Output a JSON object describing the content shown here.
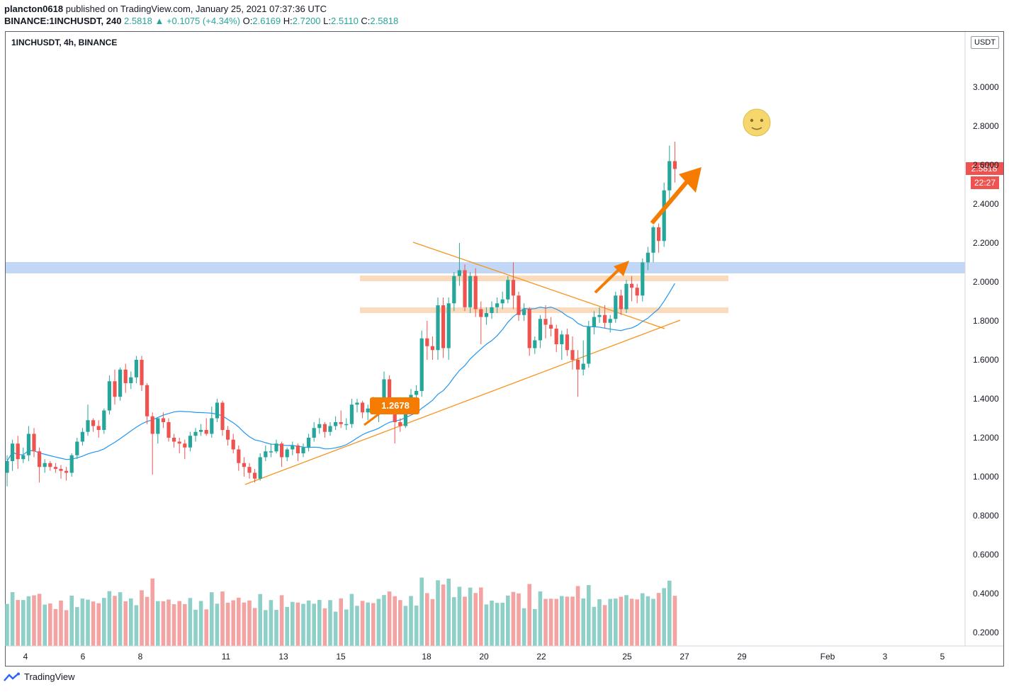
{
  "header": {
    "author": "plancton0618",
    "published_text": "published on TradingView.com, January 25, 2021 07:37:36 UTC",
    "symbol_line": "BINANCE:1INCHUSDT, 240",
    "last": "2.5818",
    "change": "+0.1075 (+4.34%)",
    "o_label": "O:",
    "o_value": "2.6169",
    "h_label": "H:",
    "h_value": "2.7200",
    "l_label": "L:",
    "l_value": "2.5110",
    "c_label": "C:",
    "c_value": "2.5818"
  },
  "pane": {
    "title": "1INCHUSDT, 4h, BINANCE",
    "currency": "USDT"
  },
  "badges": {
    "price": "2.5818",
    "countdown": "22:27",
    "annotation": "1.2678"
  },
  "footer": {
    "brand": "TradingView"
  },
  "colors": {
    "up": "#26a69a",
    "down": "#ef5350",
    "ma": "#2196f3",
    "trend": "#f7941d",
    "arrow": "#f57c00",
    "resistance_band": "#b3cdf2",
    "zone": "#f9c89a",
    "vol_up": "#8ed0c8",
    "vol_down": "#f4a3a3"
  },
  "chart_data": {
    "type": "candlestick",
    "title": "1INCHUSDT, 4h, BINANCE",
    "y_ticks": [
      "3.0000",
      "2.8000",
      "2.6000",
      "2.4000",
      "2.2000",
      "2.0000",
      "1.8000",
      "1.6000",
      "1.4000",
      "1.2000",
      "1.0000",
      "0.8000",
      "0.6000",
      "0.4000",
      "0.2000"
    ],
    "x_ticks": [
      "4",
      "6",
      "8",
      "11",
      "13",
      "15",
      "18",
      "20",
      "22",
      "25",
      "27",
      "29",
      "Feb",
      "3",
      "5"
    ],
    "ylim": [
      0.12,
      3.25
    ],
    "candles": [
      {
        "o": 1.02,
        "h": 1.11,
        "l": 0.95,
        "c": 1.08
      },
      {
        "o": 1.08,
        "h": 1.19,
        "l": 1.03,
        "c": 1.17
      },
      {
        "o": 1.17,
        "h": 1.21,
        "l": 1.04,
        "c": 1.09
      },
      {
        "o": 1.09,
        "h": 1.15,
        "l": 1.07,
        "c": 1.11
      },
      {
        "o": 1.11,
        "h": 1.26,
        "l": 1.08,
        "c": 1.22
      },
      {
        "o": 1.22,
        "h": 1.25,
        "l": 1.1,
        "c": 1.13
      },
      {
        "o": 1.13,
        "h": 1.15,
        "l": 0.97,
        "c": 1.05
      },
      {
        "o": 1.05,
        "h": 1.09,
        "l": 1.02,
        "c": 1.07
      },
      {
        "o": 1.07,
        "h": 1.08,
        "l": 1.03,
        "c": 1.05
      },
      {
        "o": 1.05,
        "h": 1.07,
        "l": 1.02,
        "c": 1.04
      },
      {
        "o": 1.04,
        "h": 1.06,
        "l": 0.99,
        "c": 1.03
      },
      {
        "o": 1.03,
        "h": 1.05,
        "l": 0.98,
        "c": 1.02
      },
      {
        "o": 1.02,
        "h": 1.12,
        "l": 1.0,
        "c": 1.11
      },
      {
        "o": 1.11,
        "h": 1.2,
        "l": 1.09,
        "c": 1.18
      },
      {
        "o": 1.18,
        "h": 1.25,
        "l": 1.16,
        "c": 1.23
      },
      {
        "o": 1.23,
        "h": 1.37,
        "l": 1.21,
        "c": 1.29
      },
      {
        "o": 1.29,
        "h": 1.3,
        "l": 1.23,
        "c": 1.26
      },
      {
        "o": 1.26,
        "h": 1.29,
        "l": 1.2,
        "c": 1.24
      },
      {
        "o": 1.24,
        "h": 1.35,
        "l": 1.22,
        "c": 1.34
      },
      {
        "o": 1.34,
        "h": 1.52,
        "l": 1.32,
        "c": 1.49
      },
      {
        "o": 1.49,
        "h": 1.55,
        "l": 1.37,
        "c": 1.41
      },
      {
        "o": 1.41,
        "h": 1.56,
        "l": 1.39,
        "c": 1.55
      },
      {
        "o": 1.55,
        "h": 1.58,
        "l": 1.43,
        "c": 1.48
      },
      {
        "o": 1.48,
        "h": 1.54,
        "l": 1.45,
        "c": 1.51
      },
      {
        "o": 1.51,
        "h": 1.62,
        "l": 1.48,
        "c": 1.6
      },
      {
        "o": 1.6,
        "h": 1.62,
        "l": 1.44,
        "c": 1.47
      },
      {
        "o": 1.47,
        "h": 1.48,
        "l": 1.27,
        "c": 1.31
      },
      {
        "o": 1.31,
        "h": 1.33,
        "l": 1.01,
        "c": 1.22
      },
      {
        "o": 1.22,
        "h": 1.3,
        "l": 1.17,
        "c": 1.3
      },
      {
        "o": 1.3,
        "h": 1.33,
        "l": 1.25,
        "c": 1.28
      },
      {
        "o": 1.28,
        "h": 1.3,
        "l": 1.18,
        "c": 1.2
      },
      {
        "o": 1.2,
        "h": 1.22,
        "l": 1.15,
        "c": 1.18
      },
      {
        "o": 1.18,
        "h": 1.2,
        "l": 1.12,
        "c": 1.17
      },
      {
        "o": 1.17,
        "h": 1.19,
        "l": 1.09,
        "c": 1.15
      },
      {
        "o": 1.15,
        "h": 1.23,
        "l": 1.13,
        "c": 1.21
      },
      {
        "o": 1.21,
        "h": 1.25,
        "l": 1.18,
        "c": 1.23
      },
      {
        "o": 1.23,
        "h": 1.27,
        "l": 1.21,
        "c": 1.24
      },
      {
        "o": 1.24,
        "h": 1.3,
        "l": 1.21,
        "c": 1.22
      },
      {
        "o": 1.22,
        "h": 1.36,
        "l": 1.2,
        "c": 1.3
      },
      {
        "o": 1.3,
        "h": 1.4,
        "l": 1.28,
        "c": 1.38
      },
      {
        "o": 1.38,
        "h": 1.39,
        "l": 1.21,
        "c": 1.24
      },
      {
        "o": 1.24,
        "h": 1.26,
        "l": 1.16,
        "c": 1.19
      },
      {
        "o": 1.19,
        "h": 1.22,
        "l": 1.12,
        "c": 1.14
      },
      {
        "o": 1.14,
        "h": 1.16,
        "l": 1.03,
        "c": 1.07
      },
      {
        "o": 1.07,
        "h": 1.1,
        "l": 1.0,
        "c": 1.05
      },
      {
        "o": 1.05,
        "h": 1.07,
        "l": 0.99,
        "c": 1.02
      },
      {
        "o": 1.02,
        "h": 1.04,
        "l": 0.97,
        "c": 0.99
      },
      {
        "o": 0.99,
        "h": 1.12,
        "l": 0.98,
        "c": 1.1
      },
      {
        "o": 1.1,
        "h": 1.16,
        "l": 1.08,
        "c": 1.13
      },
      {
        "o": 1.13,
        "h": 1.17,
        "l": 1.1,
        "c": 1.13
      },
      {
        "o": 1.13,
        "h": 1.19,
        "l": 1.12,
        "c": 1.17
      },
      {
        "o": 1.17,
        "h": 1.18,
        "l": 1.05,
        "c": 1.1
      },
      {
        "o": 1.1,
        "h": 1.15,
        "l": 1.08,
        "c": 1.14
      },
      {
        "o": 1.14,
        "h": 1.18,
        "l": 1.11,
        "c": 1.16
      },
      {
        "o": 1.16,
        "h": 1.17,
        "l": 1.08,
        "c": 1.12
      },
      {
        "o": 1.12,
        "h": 1.17,
        "l": 1.1,
        "c": 1.15
      },
      {
        "o": 1.15,
        "h": 1.22,
        "l": 1.13,
        "c": 1.2
      },
      {
        "o": 1.2,
        "h": 1.28,
        "l": 1.18,
        "c": 1.25
      },
      {
        "o": 1.25,
        "h": 1.3,
        "l": 1.22,
        "c": 1.27
      },
      {
        "o": 1.27,
        "h": 1.28,
        "l": 1.2,
        "c": 1.23
      },
      {
        "o": 1.23,
        "h": 1.28,
        "l": 1.21,
        "c": 1.26
      },
      {
        "o": 1.26,
        "h": 1.31,
        "l": 1.24,
        "c": 1.28
      },
      {
        "o": 1.28,
        "h": 1.34,
        "l": 1.25,
        "c": 1.27
      },
      {
        "o": 1.27,
        "h": 1.3,
        "l": 1.24,
        "c": 1.27
      },
      {
        "o": 1.27,
        "h": 1.4,
        "l": 1.25,
        "c": 1.37
      },
      {
        "o": 1.37,
        "h": 1.4,
        "l": 1.33,
        "c": 1.38
      },
      {
        "o": 1.38,
        "h": 1.39,
        "l": 1.3,
        "c": 1.33
      },
      {
        "o": 1.33,
        "h": 1.37,
        "l": 1.29,
        "c": 1.35
      },
      {
        "o": 1.35,
        "h": 1.41,
        "l": 1.32,
        "c": 1.32
      },
      {
        "o": 1.32,
        "h": 1.38,
        "l": 1.28,
        "c": 1.35
      },
      {
        "o": 1.35,
        "h": 1.54,
        "l": 1.33,
        "c": 1.5
      },
      {
        "o": 1.5,
        "h": 1.52,
        "l": 1.35,
        "c": 1.38
      },
      {
        "o": 1.38,
        "h": 1.4,
        "l": 1.17,
        "c": 1.28
      },
      {
        "o": 1.28,
        "h": 1.3,
        "l": 1.23,
        "c": 1.26
      },
      {
        "o": 1.26,
        "h": 1.37,
        "l": 1.25,
        "c": 1.35
      },
      {
        "o": 1.35,
        "h": 1.45,
        "l": 1.33,
        "c": 1.42
      },
      {
        "o": 1.42,
        "h": 1.47,
        "l": 1.38,
        "c": 1.44
      },
      {
        "o": 1.44,
        "h": 1.75,
        "l": 1.41,
        "c": 1.71
      },
      {
        "o": 1.71,
        "h": 1.8,
        "l": 1.6,
        "c": 1.67
      },
      {
        "o": 1.67,
        "h": 1.72,
        "l": 1.6,
        "c": 1.65
      },
      {
        "o": 1.65,
        "h": 1.92,
        "l": 1.6,
        "c": 1.88
      },
      {
        "o": 1.88,
        "h": 1.92,
        "l": 1.61,
        "c": 1.66
      },
      {
        "o": 1.66,
        "h": 1.92,
        "l": 1.6,
        "c": 1.89
      },
      {
        "o": 1.89,
        "h": 2.05,
        "l": 1.85,
        "c": 2.03
      },
      {
        "o": 2.03,
        "h": 2.2,
        "l": 1.98,
        "c": 2.06
      },
      {
        "o": 2.06,
        "h": 2.09,
        "l": 1.85,
        "c": 1.87
      },
      {
        "o": 1.87,
        "h": 2.05,
        "l": 1.84,
        "c": 2.03
      },
      {
        "o": 2.03,
        "h": 2.07,
        "l": 1.82,
        "c": 1.86
      },
      {
        "o": 1.86,
        "h": 1.9,
        "l": 1.68,
        "c": 1.82
      },
      {
        "o": 1.82,
        "h": 1.87,
        "l": 1.78,
        "c": 1.84
      },
      {
        "o": 1.84,
        "h": 1.9,
        "l": 1.81,
        "c": 1.87
      },
      {
        "o": 1.87,
        "h": 1.92,
        "l": 1.84,
        "c": 1.89
      },
      {
        "o": 1.89,
        "h": 1.95,
        "l": 1.86,
        "c": 1.91
      },
      {
        "o": 1.91,
        "h": 2.03,
        "l": 1.89,
        "c": 2.01
      },
      {
        "o": 2.01,
        "h": 2.1,
        "l": 1.86,
        "c": 1.93
      },
      {
        "o": 1.93,
        "h": 1.95,
        "l": 1.8,
        "c": 1.83
      },
      {
        "o": 1.83,
        "h": 1.89,
        "l": 1.8,
        "c": 1.86
      },
      {
        "o": 1.86,
        "h": 1.87,
        "l": 1.62,
        "c": 1.66
      },
      {
        "o": 1.66,
        "h": 1.72,
        "l": 1.63,
        "c": 1.7
      },
      {
        "o": 1.7,
        "h": 1.83,
        "l": 1.66,
        "c": 1.81
      },
      {
        "o": 1.81,
        "h": 1.88,
        "l": 1.71,
        "c": 1.78
      },
      {
        "o": 1.78,
        "h": 1.82,
        "l": 1.72,
        "c": 1.76
      },
      {
        "o": 1.76,
        "h": 1.78,
        "l": 1.64,
        "c": 1.68
      },
      {
        "o": 1.68,
        "h": 1.75,
        "l": 1.6,
        "c": 1.73
      },
      {
        "o": 1.73,
        "h": 1.76,
        "l": 1.62,
        "c": 1.65
      },
      {
        "o": 1.65,
        "h": 1.72,
        "l": 1.55,
        "c": 1.6
      },
      {
        "o": 1.6,
        "h": 1.65,
        "l": 1.41,
        "c": 1.55
      },
      {
        "o": 1.55,
        "h": 1.7,
        "l": 1.52,
        "c": 1.58
      },
      {
        "o": 1.58,
        "h": 1.8,
        "l": 1.56,
        "c": 1.77
      },
      {
        "o": 1.77,
        "h": 1.85,
        "l": 1.73,
        "c": 1.82
      },
      {
        "o": 1.82,
        "h": 1.87,
        "l": 1.79,
        "c": 1.83
      },
      {
        "o": 1.83,
        "h": 1.88,
        "l": 1.76,
        "c": 1.79
      },
      {
        "o": 1.79,
        "h": 1.83,
        "l": 1.74,
        "c": 1.81
      },
      {
        "o": 1.81,
        "h": 1.95,
        "l": 1.79,
        "c": 1.93
      },
      {
        "o": 1.93,
        "h": 1.96,
        "l": 1.83,
        "c": 1.86
      },
      {
        "o": 1.86,
        "h": 2.01,
        "l": 1.84,
        "c": 1.99
      },
      {
        "o": 1.99,
        "h": 2.03,
        "l": 1.9,
        "c": 1.97
      },
      {
        "o": 1.97,
        "h": 1.99,
        "l": 1.89,
        "c": 1.93
      },
      {
        "o": 1.93,
        "h": 2.12,
        "l": 1.9,
        "c": 2.1
      },
      {
        "o": 2.1,
        "h": 2.18,
        "l": 2.06,
        "c": 2.15
      },
      {
        "o": 2.15,
        "h": 2.29,
        "l": 2.1,
        "c": 2.28
      },
      {
        "o": 2.28,
        "h": 2.3,
        "l": 2.15,
        "c": 2.21
      },
      {
        "o": 2.21,
        "h": 2.51,
        "l": 2.18,
        "c": 2.47
      },
      {
        "o": 2.47,
        "h": 2.7,
        "l": 2.41,
        "c": 2.62
      },
      {
        "o": 2.62,
        "h": 2.72,
        "l": 2.51,
        "c": 2.58
      }
    ],
    "volume_note": "volume histogram below price pane; axis shared with price labels"
  }
}
